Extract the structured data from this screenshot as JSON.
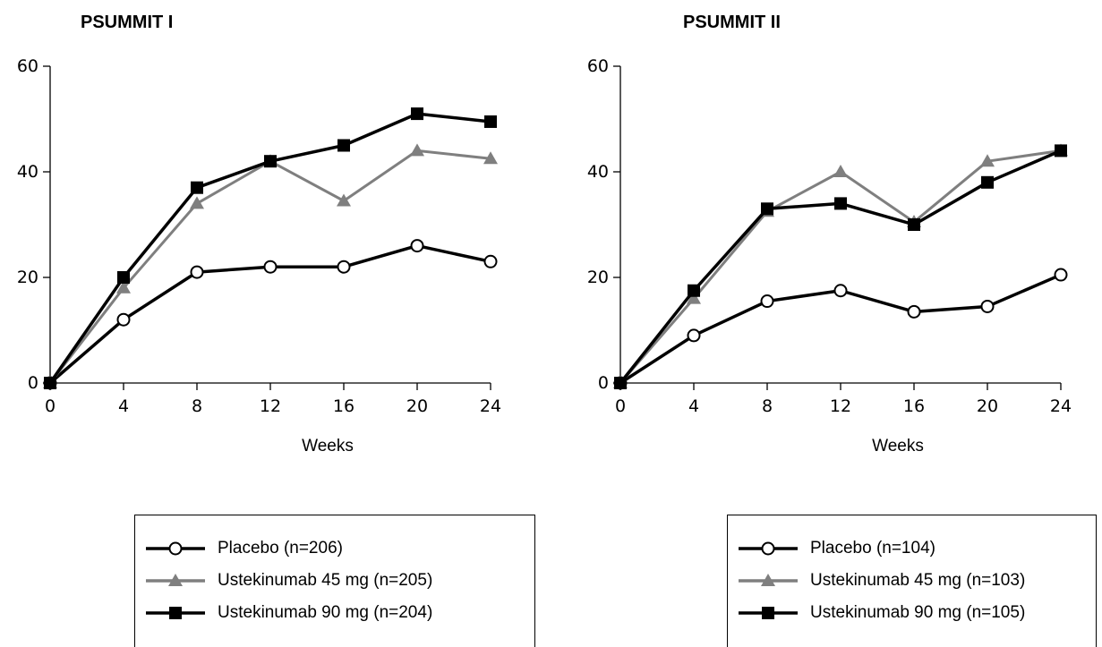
{
  "chart_data": [
    {
      "type": "line",
      "title": "PSUMMIT I",
      "xlabel": "Weeks",
      "ylabel": "",
      "xlim": [
        0,
        24
      ],
      "ylim": [
        0,
        60
      ],
      "x_ticks": [
        0,
        4,
        8,
        12,
        16,
        20,
        24
      ],
      "y_ticks": [
        0,
        20,
        40,
        60
      ],
      "x": [
        0,
        4,
        8,
        12,
        16,
        20,
        24
      ],
      "grid": false,
      "legend_position": "bottom",
      "series": [
        {
          "name": "Placebo (n=206)",
          "marker": "open-circle",
          "color": "#000000",
          "values": [
            0,
            12,
            21,
            22,
            22,
            26,
            23
          ]
        },
        {
          "name": "Ustekinumab 45 mg (n=205)",
          "marker": "triangle",
          "color": "#7f7f7f",
          "values": [
            0,
            18,
            34,
            42,
            34.5,
            44,
            42.5
          ]
        },
        {
          "name": "Ustekinumab 90 mg (n=204)",
          "marker": "square",
          "color": "#000000",
          "values": [
            0,
            20,
            37,
            42,
            45,
            51,
            49.5
          ]
        }
      ]
    },
    {
      "type": "line",
      "title": "PSUMMIT II",
      "xlabel": "Weeks",
      "ylabel": "",
      "xlim": [
        0,
        24
      ],
      "ylim": [
        0,
        60
      ],
      "x_ticks": [
        0,
        4,
        8,
        12,
        16,
        20,
        24
      ],
      "y_ticks": [
        0,
        20,
        40,
        60
      ],
      "x": [
        0,
        4,
        8,
        12,
        16,
        20,
        24
      ],
      "grid": false,
      "legend_position": "bottom",
      "series": [
        {
          "name": "Placebo (n=104)",
          "marker": "open-circle",
          "color": "#000000",
          "values": [
            0,
            9,
            15.5,
            17.5,
            13.5,
            14.5,
            20.5
          ]
        },
        {
          "name": "Ustekinumab 45 mg (n=103)",
          "marker": "triangle",
          "color": "#7f7f7f",
          "values": [
            0,
            16,
            32.5,
            40,
            30.5,
            42,
            44
          ]
        },
        {
          "name": "Ustekinumab 90 mg (n=105)",
          "marker": "square",
          "color": "#000000",
          "values": [
            0,
            17.5,
            33,
            34,
            30,
            38,
            44
          ]
        }
      ]
    }
  ]
}
